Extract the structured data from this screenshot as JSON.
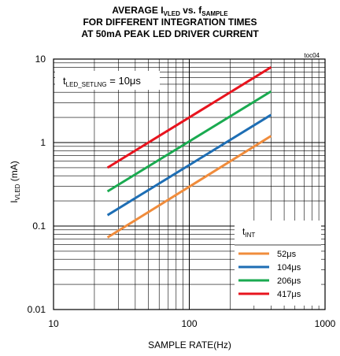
{
  "title": {
    "line1_prefix": "AVERAGE I",
    "line1_sub1": "VLED",
    "line1_mid": " vs. f",
    "line1_sub2": "SAMPLE",
    "line2": "FOR DIFFERENT INTEGRATION TIMES",
    "line3": "AT 50mA PEAK LED DRIVER CURRENT"
  },
  "chart_data": {
    "type": "line",
    "tag": "toc04",
    "xlabel": "SAMPLE RATE(Hz)",
    "ylabel_main": "I",
    "ylabel_sub": "VLED",
    "ylabel_unit": " (mA)",
    "xscale": "log",
    "yscale": "log",
    "xlim": [
      10,
      1000
    ],
    "ylim": [
      0.01,
      10
    ],
    "x_ticks": [
      "10",
      "100",
      "1000"
    ],
    "y_ticks": [
      "0.01",
      "0.1",
      "1",
      "10"
    ],
    "grid": true,
    "annotation_main": "t",
    "annotation_sub": "LED_SETLNG",
    "annotation_rest": " = 10μs",
    "legend_title_main": "t",
    "legend_title_sub": "INT",
    "legend_position": "bottom-right",
    "series": [
      {
        "name": "52μs",
        "color": "#F08C3C",
        "x": [
          25,
          400
        ],
        "y": [
          0.073,
          1.2
        ]
      },
      {
        "name": "104μs",
        "color": "#1E6EB4",
        "x": [
          25,
          400
        ],
        "y": [
          0.135,
          2.15
        ]
      },
      {
        "name": "206μs",
        "color": "#1AAA50",
        "x": [
          25,
          400
        ],
        "y": [
          0.26,
          4.1
        ]
      },
      {
        "name": "417μs",
        "color": "#E8141E",
        "x": [
          25,
          400
        ],
        "y": [
          0.5,
          8.0
        ]
      }
    ]
  }
}
